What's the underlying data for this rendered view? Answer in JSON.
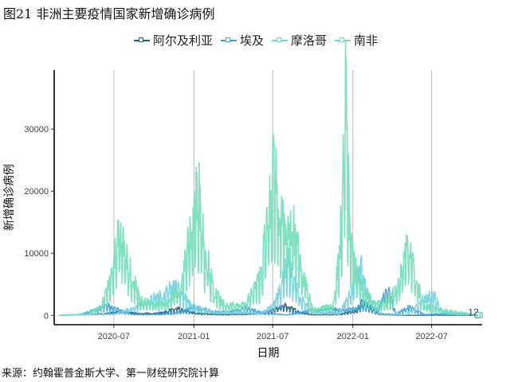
{
  "figure_title": "图21 非洲主要疫情国家新增确诊病例",
  "source": "来源：约翰霍普金斯大学、第一财经研究院计算",
  "chart_data": {
    "type": "line",
    "xlabel": "日期",
    "ylabel": "新增确诊病例",
    "x_ticks": [
      "2020-07",
      "2021-01",
      "2021-07",
      "2022-01",
      "2022-07"
    ],
    "y_ticks": [
      0,
      10000,
      20000,
      30000
    ],
    "xlim": [
      "2020-02-15",
      "2022-10-25"
    ],
    "ylim": [
      -1500,
      39500
    ],
    "grid": {
      "vertical_major": true,
      "horizontal": false
    },
    "legend_position": "top",
    "annotation": {
      "text": "12",
      "x": "2022-10-05",
      "y": 500
    },
    "series": [
      {
        "name": "阿尔及利亚",
        "color": "#1f5f86",
        "points": [
          [
            "2020-02-25",
            0
          ],
          [
            "2020-04-01",
            120
          ],
          [
            "2020-05-15",
            200
          ],
          [
            "2020-06-15",
            300
          ],
          [
            "2020-07-10",
            600
          ],
          [
            "2020-07-28",
            500
          ],
          [
            "2020-09-01",
            300
          ],
          [
            "2020-10-15",
            400
          ],
          [
            "2020-11-10",
            900
          ],
          [
            "2020-11-25",
            1100
          ],
          [
            "2020-12-20",
            600
          ],
          [
            "2021-01-15",
            300
          ],
          [
            "2021-03-01",
            150
          ],
          [
            "2021-05-01",
            200
          ],
          [
            "2021-06-15",
            400
          ],
          [
            "2021-07-10",
            1200
          ],
          [
            "2021-07-28",
            1900
          ],
          [
            "2021-08-10",
            1300
          ],
          [
            "2021-09-01",
            500
          ],
          [
            "2021-10-01",
            100
          ],
          [
            "2021-12-01",
            150
          ],
          [
            "2022-01-10",
            800
          ],
          [
            "2022-01-25",
            2500
          ],
          [
            "2022-02-05",
            1500
          ],
          [
            "2022-03-01",
            200
          ],
          [
            "2022-05-01",
            10
          ],
          [
            "2022-07-01",
            40
          ],
          [
            "2022-10-15",
            15
          ]
        ]
      },
      {
        "name": "埃及",
        "color": "#3aa5d6",
        "points": [
          [
            "2020-02-25",
            0
          ],
          [
            "2020-04-15",
            150
          ],
          [
            "2020-05-15",
            800
          ],
          [
            "2020-06-20",
            1600
          ],
          [
            "2020-07-15",
            800
          ],
          [
            "2020-08-15",
            150
          ],
          [
            "2020-10-15",
            150
          ],
          [
            "2020-12-01",
            500
          ],
          [
            "2021-01-01",
            1400
          ],
          [
            "2021-02-15",
            600
          ],
          [
            "2021-04-01",
            700
          ],
          [
            "2021-05-01",
            1200
          ],
          [
            "2021-06-15",
            400
          ],
          [
            "2021-08-01",
            100
          ],
          [
            "2021-10-01",
            850
          ],
          [
            "2021-11-15",
            1000
          ],
          [
            "2021-12-15",
            900
          ],
          [
            "2022-01-01",
            1100
          ],
          [
            "2022-02-01",
            1800
          ],
          [
            "2022-03-01",
            900
          ],
          [
            "2022-03-20",
            4500
          ],
          [
            "2022-04-10",
            300
          ],
          [
            "2022-05-10",
            1400
          ],
          [
            "2022-06-15",
            150
          ],
          [
            "2022-08-15",
            350
          ],
          [
            "2022-10-15",
            100
          ]
        ]
      },
      {
        "name": "摩洛哥",
        "color": "#72d0e0",
        "points": [
          [
            "2020-02-25",
            0
          ],
          [
            "2020-05-01",
            200
          ],
          [
            "2020-07-01",
            200
          ],
          [
            "2020-08-15",
            1200
          ],
          [
            "2020-09-15",
            2300
          ],
          [
            "2020-10-20",
            3500
          ],
          [
            "2020-11-15",
            5000
          ],
          [
            "2020-12-01",
            3500
          ],
          [
            "2021-01-01",
            1500
          ],
          [
            "2021-02-15",
            500
          ],
          [
            "2021-04-01",
            500
          ],
          [
            "2021-06-01",
            300
          ],
          [
            "2021-07-01",
            1500
          ],
          [
            "2021-07-20",
            4500
          ],
          [
            "2021-08-01",
            9000
          ],
          [
            "2021-08-15",
            7000
          ],
          [
            "2021-09-01",
            3000
          ],
          [
            "2021-10-01",
            500
          ],
          [
            "2021-12-01",
            300
          ],
          [
            "2022-01-01",
            4500
          ],
          [
            "2022-01-18",
            8500
          ],
          [
            "2022-02-01",
            4000
          ],
          [
            "2022-03-01",
            400
          ],
          [
            "2022-05-01",
            100
          ],
          [
            "2022-06-15",
            2500
          ],
          [
            "2022-07-05",
            3500
          ],
          [
            "2022-07-25",
            600
          ],
          [
            "2022-09-01",
            150
          ],
          [
            "2022-10-20",
            50
          ]
        ]
      },
      {
        "name": "南非",
        "color": "#72dfb8",
        "points": [
          [
            "2020-02-25",
            0
          ],
          [
            "2020-05-01",
            200
          ],
          [
            "2020-06-01",
            1500
          ],
          [
            "2020-06-20",
            5000
          ],
          [
            "2020-07-05",
            10000
          ],
          [
            "2020-07-12",
            13500
          ],
          [
            "2020-07-25",
            12000
          ],
          [
            "2020-08-10",
            7000
          ],
          [
            "2020-09-01",
            2500
          ],
          [
            "2020-10-01",
            1800
          ],
          [
            "2020-11-01",
            2000
          ],
          [
            "2020-12-01",
            5000
          ],
          [
            "2020-12-20",
            12000
          ],
          [
            "2021-01-03",
            17000
          ],
          [
            "2021-01-10",
            21500
          ],
          [
            "2021-01-25",
            12000
          ],
          [
            "2021-02-15",
            4000
          ],
          [
            "2021-03-15",
            1500
          ],
          [
            "2021-05-01",
            2000
          ],
          [
            "2021-06-01",
            6000
          ],
          [
            "2021-06-25",
            18000
          ],
          [
            "2021-07-05",
            26000
          ],
          [
            "2021-07-20",
            15000
          ],
          [
            "2021-08-05",
            13000
          ],
          [
            "2021-08-20",
            14000
          ],
          [
            "2021-09-10",
            6000
          ],
          [
            "2021-10-01",
            1000
          ],
          [
            "2021-11-15",
            1500
          ],
          [
            "2021-12-01",
            9000
          ],
          [
            "2021-12-10",
            23000
          ],
          [
            "2021-12-15",
            37500
          ],
          [
            "2021-12-25",
            14000
          ],
          [
            "2022-01-05",
            8000
          ],
          [
            "2022-01-25",
            4000
          ],
          [
            "2022-02-15",
            2500
          ],
          [
            "2022-03-15",
            1500
          ],
          [
            "2022-04-15",
            5000
          ],
          [
            "2022-05-10",
            13000
          ],
          [
            "2022-05-25",
            6000
          ],
          [
            "2022-06-15",
            1500
          ],
          [
            "2022-08-01",
            800
          ],
          [
            "2022-10-15",
            100
          ]
        ]
      }
    ]
  }
}
